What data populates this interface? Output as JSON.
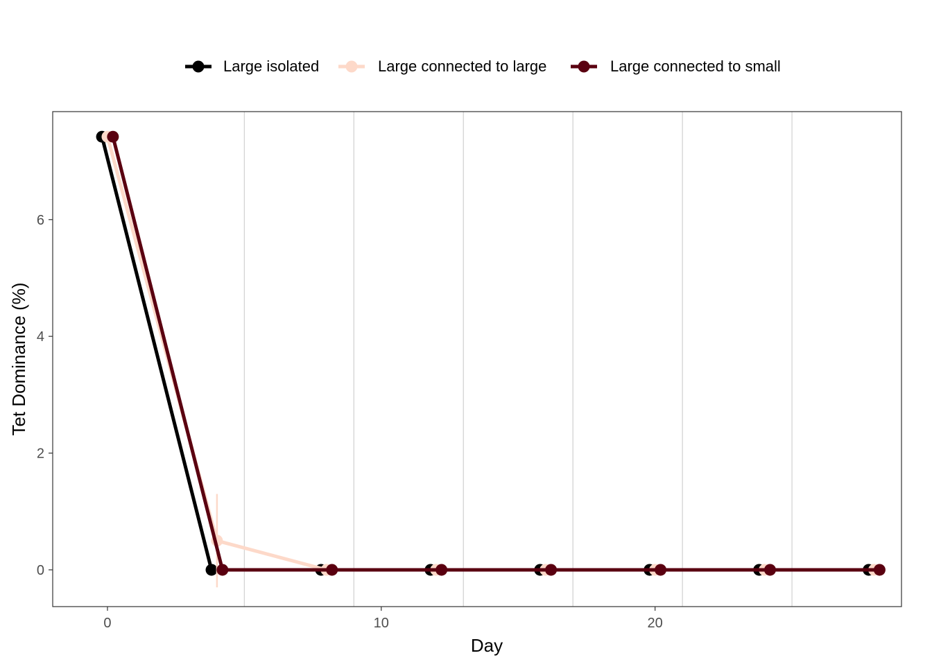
{
  "chart_data": {
    "type": "line",
    "title": "",
    "xlabel": "Day",
    "ylabel": "Tet Dominance (%)",
    "xlim": [
      -2,
      29
    ],
    "ylim": [
      -0.63,
      7.85
    ],
    "x_ticks": [
      0,
      10,
      20
    ],
    "y_ticks": [
      0,
      2,
      4,
      6
    ],
    "vertical_gridlines_at": [
      5,
      9,
      13,
      17,
      21,
      25
    ],
    "legend_position": "top",
    "series": [
      {
        "name": "Large isolated",
        "color": "#000000",
        "x": [
          0,
          4,
          8,
          12,
          16,
          20,
          24,
          28
        ],
        "y": [
          7.42,
          0,
          0,
          0,
          0,
          0,
          0,
          0
        ],
        "error": [
          0,
          0,
          0,
          0,
          0,
          0,
          0,
          0
        ]
      },
      {
        "name": "Large connected to large",
        "color": "#FDD9C9",
        "x": [
          0,
          4,
          8,
          12,
          16,
          20,
          24,
          28
        ],
        "y": [
          7.42,
          0.5,
          0,
          0,
          0,
          0,
          0,
          0
        ],
        "error": [
          0,
          0.8,
          0,
          0,
          0,
          0,
          0,
          0
        ]
      },
      {
        "name": "Large connected to small",
        "color": "#5A0010",
        "x": [
          0,
          4,
          8,
          12,
          16,
          20,
          24,
          28
        ],
        "y": [
          7.42,
          0,
          0,
          0,
          0,
          0,
          0,
          0
        ],
        "error": [
          0,
          0,
          0,
          0,
          0,
          0,
          0,
          0
        ]
      }
    ]
  }
}
